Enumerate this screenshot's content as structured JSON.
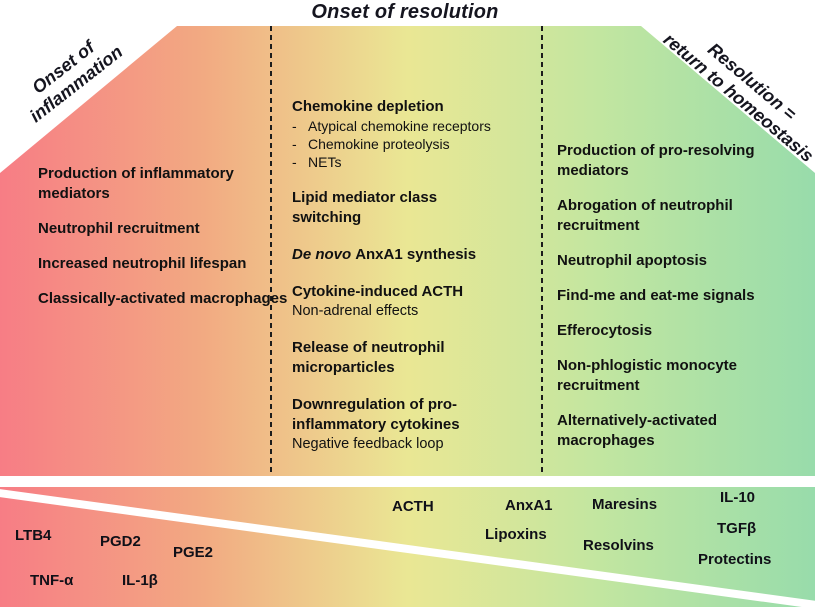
{
  "title": "Onset of resolution",
  "corner_labels": {
    "inflammation": {
      "line1": "Onset of",
      "line2": "inflammation"
    },
    "resolution": {
      "line1": "Resolution =",
      "line2": "return to homeostasis"
    }
  },
  "columns": {
    "left": {
      "items": [
        "Production of inflammatory mediators",
        "Neutrophil recruitment",
        "Increased neutrophil lifespan",
        "Classically-activated macrophages"
      ]
    },
    "middle": {
      "bullet_marker": "-",
      "items": [
        {
          "heading": "Chemokine depletion",
          "bullets": [
            "Atypical chemokine receptors",
            "Chemokine proteolysis",
            "NETs"
          ]
        },
        {
          "heading": "Lipid mediator class switching"
        },
        {
          "heading_italic": "De novo",
          "heading": "AnxA1 synthesis"
        },
        {
          "heading": "Cytokine-induced ACTH",
          "note": "Non-adrenal effects"
        },
        {
          "heading": "Release of neutrophil microparticles"
        },
        {
          "heading": "Downregulation of pro-inflammatory cytokines",
          "note": "Negative feedback loop"
        }
      ]
    },
    "right": {
      "items": [
        "Production of pro-resolving mediators",
        "Abrogation of neutrophil recruitment",
        "Neutrophil apoptosis",
        "Find-me and eat-me signals",
        "Efferocytosis",
        "Non-phlogistic monocyte recruitment",
        "Alternatively-activated macrophages"
      ]
    }
  },
  "mediator_band": {
    "inflammatory": [
      "LTB4",
      "PGD2",
      "PGE2",
      "TNF-α",
      "IL-1β"
    ],
    "pro_resolving": [
      "ACTH",
      "AnxA1",
      "Maresins",
      "IL-10",
      "Lipoxins",
      "Resolvins",
      "TGFβ",
      "Protectins"
    ]
  },
  "colors": {
    "gradient_left": "#f77d85",
    "gradient_orange": "#f2aa82",
    "gradient_mid": "#eae794",
    "gradient_green": "#c3e6a0",
    "gradient_right": "#98dcab",
    "text": "#111111"
  }
}
